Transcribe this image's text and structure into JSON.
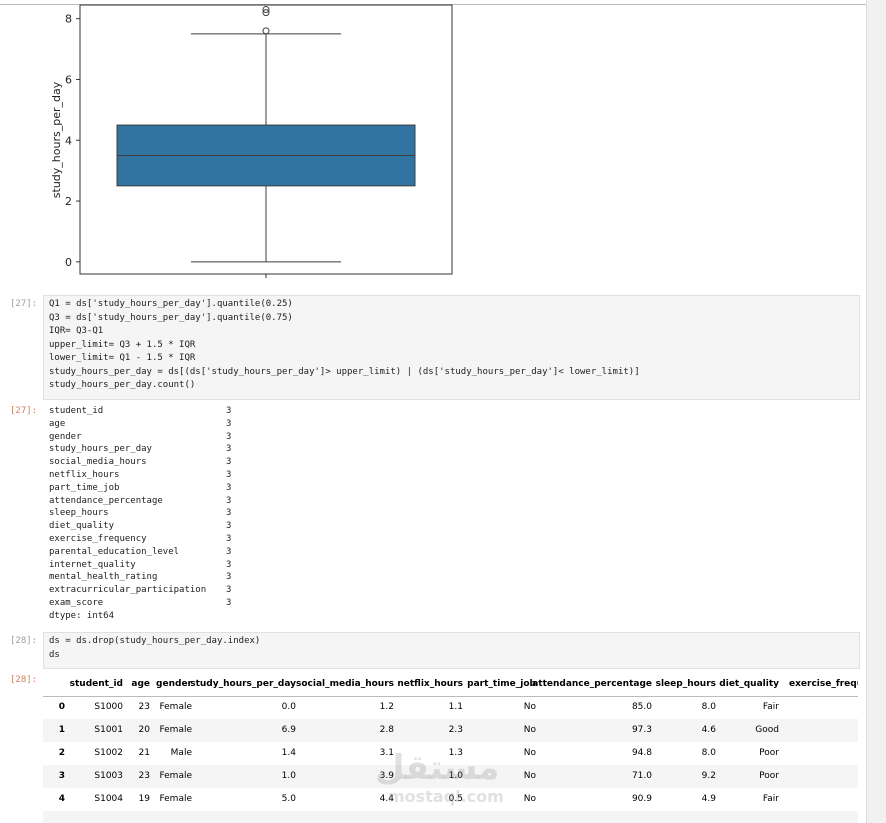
{
  "plot": {
    "type": "box",
    "ylabel": "study_hours_per_day",
    "ylim": [
      -0.4,
      8.45
    ],
    "yticks": [
      0,
      2,
      4,
      6,
      8
    ],
    "color": "#3274a1",
    "whisker_low": 0,
    "q1": 2.5,
    "median": 3.5,
    "q3": 4.5,
    "whisker_high": 7.5,
    "outliers": [
      7.6,
      8.2,
      8.3
    ]
  },
  "cells": [
    {
      "prompt": "[27]:",
      "code": [
        "Q1 = ds['study_hours_per_day'].quantile(0.25)",
        "Q3 = ds['study_hours_per_day'].quantile(0.75)",
        "IQR= Q3-Q1",
        "upper_limit= Q3 + 1.5 * IQR",
        "lower_limit= Q1 - 1.5 * IQR",
        "study_hours_per_day = ds[(ds['study_hours_per_day']> upper_limit) | (ds['study_hours_per_day']< lower_limit)]",
        "study_hours_per_day.count()"
      ]
    },
    {
      "prompt": "[27]:",
      "series": [
        [
          "student_id",
          "3"
        ],
        [
          "age",
          "3"
        ],
        [
          "gender",
          "3"
        ],
        [
          "study_hours_per_day",
          "3"
        ],
        [
          "social_media_hours",
          "3"
        ],
        [
          "netflix_hours",
          "3"
        ],
        [
          "part_time_job",
          "3"
        ],
        [
          "attendance_percentage",
          "3"
        ],
        [
          "sleep_hours",
          "3"
        ],
        [
          "diet_quality",
          "3"
        ],
        [
          "exercise_frequency",
          "3"
        ],
        [
          "parental_education_level",
          "3"
        ],
        [
          "internet_quality",
          "3"
        ],
        [
          "mental_health_rating",
          "3"
        ],
        [
          "extracurricular_participation",
          "3"
        ],
        [
          "exam_score",
          "3"
        ]
      ],
      "dtype": "dtype: int64"
    },
    {
      "prompt": "[28]:",
      "code": [
        "ds = ds.drop(study_hours_per_day.index)",
        "ds"
      ]
    },
    {
      "prompt": "[28]:",
      "table": {
        "columns": [
          "student_id",
          "age",
          "gender",
          "study_hours_per_day",
          "social_media_hours",
          "netflix_hours",
          "part_time_job",
          "attendance_percentage",
          "sleep_hours",
          "diet_quality",
          "exercise_freque"
        ],
        "rows": [
          [
            "0",
            "S1000",
            "23",
            "Female",
            "0.0",
            "1.2",
            "1.1",
            "No",
            "85.0",
            "8.0",
            "Fair"
          ],
          [
            "1",
            "S1001",
            "20",
            "Female",
            "6.9",
            "2.8",
            "2.3",
            "No",
            "97.3",
            "4.6",
            "Good"
          ],
          [
            "2",
            "S1002",
            "21",
            "Male",
            "1.4",
            "3.1",
            "1.3",
            "No",
            "94.8",
            "8.0",
            "Poor"
          ],
          [
            "3",
            "S1003",
            "23",
            "Female",
            "1.0",
            "3.9",
            "1.0",
            "No",
            "71.0",
            "9.2",
            "Poor"
          ],
          [
            "4",
            "S1004",
            "19",
            "Female",
            "5.0",
            "4.4",
            "0.5",
            "No",
            "90.9",
            "4.9",
            "Fair"
          ]
        ]
      }
    }
  ],
  "watermark": [
    "مستقل",
    "mostaql.com"
  ]
}
